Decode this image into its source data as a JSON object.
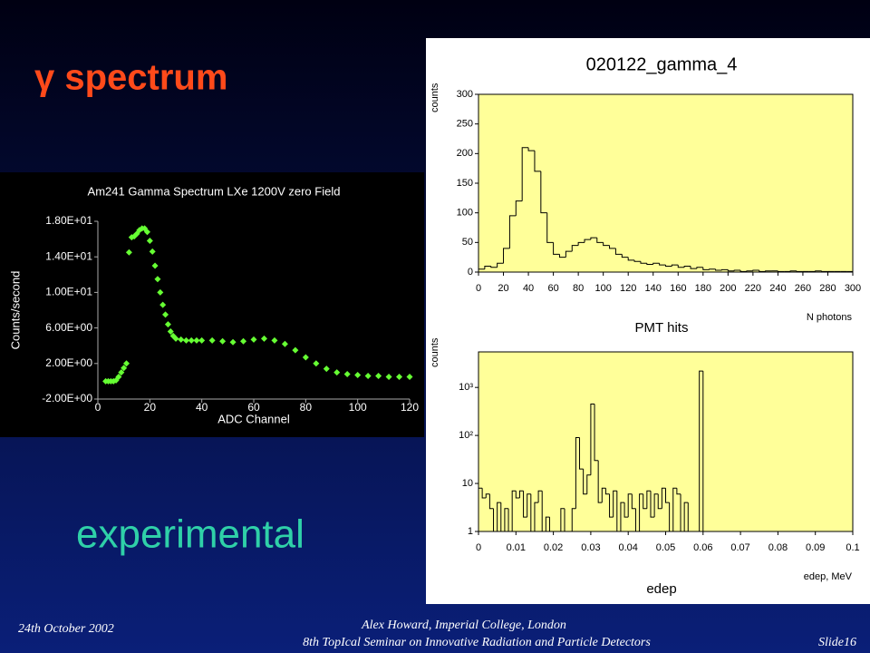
{
  "slide": {
    "title": "γ spectrum",
    "label": "experimental",
    "footer_date": "24th October 2002",
    "footer_author": "Alex Howard, Imperial College, London",
    "footer_event": "8th TopIcal Seminar on Innovative Radiation and Particle Detectors",
    "footer_slide": "Slide16"
  },
  "chart_data": [
    {
      "type": "scatter",
      "title": "Am241 Gamma Spectrum LXe 1200V zero Field",
      "x_label": "ADC Channel",
      "y_label": "Counts/second",
      "color": "#66ff33",
      "x": [
        3,
        4,
        5,
        6,
        7,
        8,
        9,
        10,
        11,
        12,
        13,
        14,
        15,
        16,
        17,
        18,
        19,
        20,
        21,
        22,
        23,
        24,
        25,
        26,
        27,
        28,
        29,
        30,
        32,
        34,
        36,
        38,
        40,
        44,
        48,
        52,
        56,
        60,
        64,
        68,
        72,
        76,
        80,
        84,
        88,
        92,
        96,
        100,
        104,
        108,
        112,
        116,
        120
      ],
      "values": [
        0,
        0,
        0,
        0,
        0.1,
        0.5,
        1,
        1.5,
        2,
        14.5,
        16.2,
        16.3,
        16.6,
        17,
        17.2,
        17.2,
        16.8,
        15.8,
        14.6,
        13,
        11.5,
        10,
        8.6,
        7.5,
        6.4,
        5.6,
        5.1,
        4.8,
        4.7,
        4.6,
        4.6,
        4.6,
        4.6,
        4.6,
        4.5,
        4.4,
        4.5,
        4.7,
        4.8,
        4.6,
        4.2,
        3.5,
        2.7,
        2.0,
        1.4,
        1.0,
        0.8,
        0.7,
        0.6,
        0.6,
        0.5,
        0.5,
        0.5
      ],
      "xlim": [
        0,
        120
      ],
      "xticks": [
        0,
        20,
        40,
        60,
        80,
        100,
        120
      ],
      "ylim": [
        -2,
        18
      ],
      "yticks": [
        {
          "value": -2,
          "label": "-2.00E+00"
        },
        {
          "value": 2,
          "label": "2.00E+00"
        },
        {
          "value": 6,
          "label": "6.00E+00"
        },
        {
          "value": 10,
          "label": "1.00E+01"
        },
        {
          "value": 14,
          "label": "1.40E+01"
        },
        {
          "value": 18,
          "label": "1.80E+01"
        }
      ]
    },
    {
      "type": "histogram",
      "title": "020122_gamma_4",
      "caption": "PMT hits",
      "x_label": "N photons",
      "y_label": "counts",
      "color": "#000000",
      "plot_color": "#ffff99",
      "bins": [
        0,
        5,
        10,
        15,
        20,
        25,
        30,
        35,
        40,
        45,
        50,
        55,
        60,
        65,
        70,
        75,
        80,
        85,
        90,
        95,
        100,
        105,
        110,
        115,
        120,
        125,
        130,
        135,
        140,
        145,
        150,
        155,
        160,
        165,
        170,
        175,
        180,
        185,
        190,
        195,
        200,
        205,
        210,
        215,
        220,
        225,
        230,
        235,
        240,
        245,
        250,
        255,
        260,
        265,
        270,
        275,
        280,
        285,
        290,
        295,
        300
      ],
      "values": [
        5,
        10,
        8,
        15,
        40,
        95,
        120,
        210,
        205,
        170,
        100,
        50,
        30,
        25,
        35,
        45,
        50,
        55,
        58,
        50,
        45,
        40,
        30,
        25,
        20,
        18,
        15,
        13,
        15,
        12,
        10,
        12,
        8,
        10,
        6,
        8,
        4,
        5,
        3,
        4,
        2,
        3,
        1,
        2,
        3,
        1,
        2,
        2,
        1,
        1,
        2,
        1,
        1,
        1,
        2,
        1,
        1,
        1,
        1,
        1
      ],
      "xlim": [
        0,
        300
      ],
      "xticks": [
        0,
        20,
        40,
        60,
        80,
        100,
        120,
        140,
        160,
        180,
        200,
        220,
        240,
        260,
        280,
        300
      ],
      "ylim": [
        0,
        300
      ],
      "yticks": [
        0,
        50,
        100,
        150,
        200,
        250,
        300
      ]
    },
    {
      "type": "histogram",
      "caption": "edep",
      "x_label": "edep, MeV",
      "y_label": "counts",
      "color": "#000000",
      "plot_color": "#ffff99",
      "log_y": true,
      "bins": [
        0,
        0.001,
        0.002,
        0.003,
        0.004,
        0.005,
        0.006,
        0.007,
        0.008,
        0.009,
        0.01,
        0.011,
        0.012,
        0.013,
        0.014,
        0.015,
        0.016,
        0.017,
        0.018,
        0.019,
        0.02,
        0.021,
        0.022,
        0.023,
        0.024,
        0.025,
        0.026,
        0.027,
        0.028,
        0.029,
        0.03,
        0.031,
        0.032,
        0.033,
        0.034,
        0.035,
        0.036,
        0.037,
        0.038,
        0.039,
        0.04,
        0.041,
        0.042,
        0.043,
        0.044,
        0.045,
        0.046,
        0.047,
        0.048,
        0.049,
        0.05,
        0.051,
        0.052,
        0.053,
        0.054,
        0.055,
        0.056,
        0.057,
        0.058,
        0.059,
        0.06,
        0.061,
        0.062,
        0.063,
        0.064,
        0.065,
        0.066,
        0.067,
        0.068,
        0.069,
        0.07,
        0.071,
        0.072,
        0.073,
        0.074,
        0.075,
        0.076,
        0.077,
        0.078,
        0.079,
        0.08,
        0.081,
        0.082,
        0.083,
        0.084,
        0.085,
        0.086,
        0.087,
        0.088,
        0.089,
        0.09,
        0.091,
        0.092,
        0.093,
        0.094,
        0.095,
        0.096,
        0.097,
        0.098,
        0.099,
        0.1
      ],
      "values": [
        8,
        5,
        6,
        3,
        1,
        4,
        1,
        3,
        1,
        7,
        5,
        7,
        2,
        6,
        1,
        4,
        7,
        1,
        2,
        1,
        1,
        1,
        3,
        1,
        1,
        3,
        90,
        20,
        6,
        15,
        450,
        30,
        4,
        8,
        6,
        2,
        7,
        1,
        4,
        2,
        6,
        3,
        1,
        6,
        3,
        7,
        2,
        6,
        3,
        8,
        4,
        1,
        8,
        6,
        1,
        4,
        1,
        1,
        1,
        2200,
        0,
        0,
        0,
        0,
        0,
        0,
        0,
        0,
        0,
        0,
        0,
        0,
        0,
        0,
        0,
        0,
        0,
        0,
        0,
        0,
        0,
        0,
        0,
        0,
        0,
        0,
        0,
        0,
        0,
        0,
        0,
        0,
        0,
        0,
        0,
        0,
        0,
        0,
        0,
        0
      ],
      "xlim": [
        0,
        0.1
      ],
      "xticks": [
        0,
        0.01,
        0.02,
        0.03,
        0.04,
        0.05,
        0.06,
        0.07,
        0.08,
        0.09,
        0.1
      ],
      "ylim": [
        1,
        5500
      ],
      "yticks": [
        1,
        10,
        {
          "value": 100,
          "label": "10²"
        },
        {
          "value": 1000,
          "label": "10³"
        }
      ]
    }
  ]
}
